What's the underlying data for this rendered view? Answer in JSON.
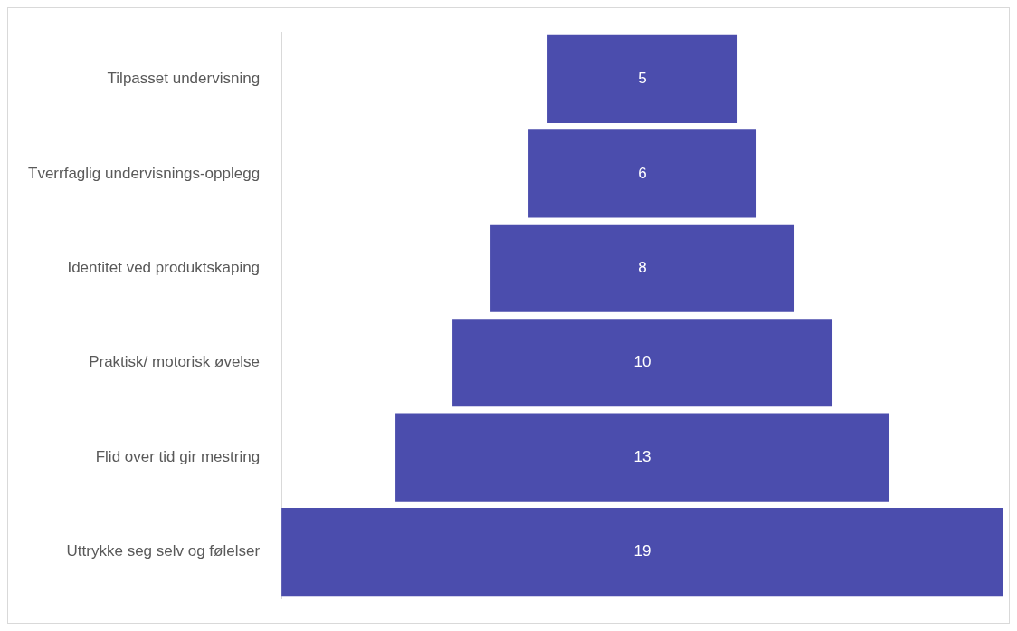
{
  "chart_data": {
    "type": "other",
    "categories": [
      "Tilpasset undervisning",
      "Tverrfaglig undervisnings-opplegg",
      "Identitet ved produktskaping",
      "Praktisk/ motorisk øvelse",
      "Flid over tid gir mestring",
      "Uttrykke seg selv og følelser"
    ],
    "values": [
      5,
      6,
      8,
      10,
      13,
      19
    ],
    "color": "#4b4dad",
    "data_labels": true
  }
}
